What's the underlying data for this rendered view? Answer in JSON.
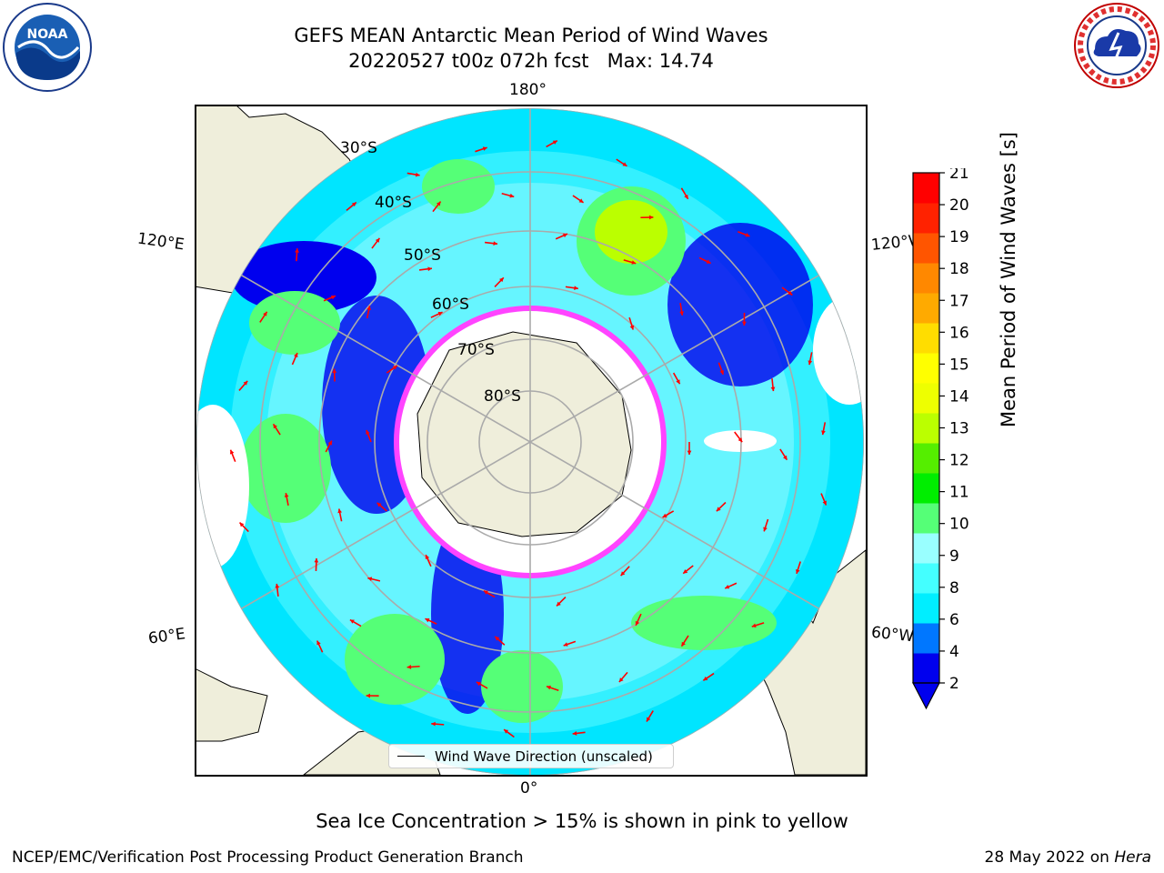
{
  "header": {
    "title_line1": "GEFS MEAN Antarctic Mean Period of Wind Waves",
    "title_line2": "20220527 t00z 072h fcst   Max: 14.74"
  },
  "logos": {
    "left": "noaa-logo",
    "left_text": "NOAA",
    "right": "nws-logo",
    "right_text": "NATIONAL WEATHER SERVICE"
  },
  "map": {
    "projection": "south-polar-stereographic",
    "longitude_labels": {
      "top": "180°",
      "bottom": "0°",
      "upper_left": "120°E",
      "lower_left": "60°E",
      "upper_right": "120°W",
      "lower_right": "60°W"
    },
    "latitude_labels": [
      "30°S",
      "40°S",
      "50°S",
      "60°S",
      "70°S",
      "80°S"
    ],
    "legend_label": "Wind Wave Direction (unscaled)",
    "arrow_color": "#ff0000"
  },
  "colorbar": {
    "title": "Mean Period of Wind Waves [s]",
    "tick_labels": [
      "21",
      "20",
      "19",
      "18",
      "17",
      "16",
      "15",
      "14",
      "13",
      "12",
      "11",
      "10",
      "9",
      "8",
      "6",
      "4",
      "2"
    ],
    "colors": [
      "#0000ee",
      "#0077ff",
      "#00eeff",
      "#44ffff",
      "#99ffff",
      "#55ff77",
      "#00ee00",
      "#55ee00",
      "#bbff00",
      "#eeff00",
      "#ffff00",
      "#ffdd00",
      "#ffaa00",
      "#ff8800",
      "#ff5500",
      "#ff2200",
      "#ff0000"
    ]
  },
  "footer": {
    "note": "Sea Ice Concentration > 15% is shown in pink to yellow",
    "credit_left": "NCEP/EMC/Verification Post Processing Product Generation Branch",
    "credit_right_prefix": "28 May 2022 on ",
    "credit_right_host": "Hera"
  }
}
